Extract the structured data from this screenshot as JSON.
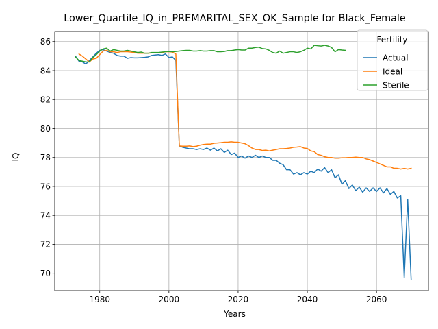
{
  "chart_data": {
    "type": "line",
    "title": "Lower_Quartile_IQ_in_PREMARITAL_SEX_OK_Sample for Black_Female",
    "xlabel": "Years",
    "ylabel": "IQ",
    "xlim": [
      1967,
      2075
    ],
    "ylim": [
      68.8,
      86.7
    ],
    "xticks": [
      1980,
      2000,
      2020,
      2040,
      2060
    ],
    "yticks": [
      70,
      72,
      74,
      76,
      78,
      80,
      82,
      84,
      86
    ],
    "grid": true,
    "legend": {
      "title": "Fertility",
      "placement": "upper right"
    },
    "series": [
      {
        "name": "Actual",
        "color": "#1f77b4",
        "x": [
          1973,
          1974,
          1975,
          1976,
          1977,
          1978,
          1979,
          1980,
          1981,
          1982,
          1983,
          1984,
          1985,
          1986,
          1987,
          1988,
          1989,
          1990,
          1991,
          1992,
          1993,
          1994,
          1995,
          1996,
          1997,
          1998,
          1999,
          2000,
          2001,
          2002,
          2003,
          2004,
          2005,
          2006,
          2007,
          2008,
          2009,
          2010,
          2011,
          2012,
          2013,
          2014,
          2015,
          2016,
          2017,
          2018,
          2019,
          2020,
          2021,
          2022,
          2023,
          2024,
          2025,
          2026,
          2027,
          2028,
          2029,
          2030,
          2031,
          2032,
          2033,
          2034,
          2035,
          2036,
          2037,
          2038,
          2039,
          2040,
          2041,
          2042,
          2043,
          2044,
          2045,
          2046,
          2047,
          2048,
          2049,
          2050,
          2051,
          2052,
          2053,
          2054,
          2055,
          2056,
          2057,
          2058,
          2059,
          2060,
          2061,
          2062,
          2063,
          2064,
          2065,
          2066,
          2067,
          2068,
          2069,
          2070
        ],
        "y": [
          85.0,
          84.65,
          84.6,
          84.45,
          84.7,
          84.95,
          85.2,
          85.4,
          85.45,
          85.35,
          85.25,
          85.2,
          85.05,
          85.0,
          85.0,
          84.85,
          84.9,
          84.88,
          84.88,
          84.9,
          84.92,
          84.95,
          85.05,
          85.08,
          85.1,
          85.05,
          85.15,
          84.9,
          84.95,
          84.7,
          78.8,
          78.7,
          78.65,
          78.6,
          78.6,
          78.55,
          78.6,
          78.55,
          78.65,
          78.5,
          78.65,
          78.45,
          78.6,
          78.35,
          78.5,
          78.2,
          78.3,
          78.0,
          78.1,
          77.95,
          78.1,
          78.0,
          78.15,
          78.0,
          78.1,
          78.0,
          78.0,
          77.8,
          77.8,
          77.6,
          77.5,
          77.15,
          77.15,
          76.85,
          76.95,
          76.8,
          76.95,
          76.85,
          77.05,
          76.95,
          77.2,
          77.05,
          77.3,
          76.95,
          77.15,
          76.6,
          76.8,
          76.15,
          76.4,
          75.85,
          76.1,
          75.7,
          75.95,
          75.6,
          75.9,
          75.65,
          75.9,
          75.65,
          75.9,
          75.55,
          75.85,
          75.45,
          75.65,
          75.2,
          75.35,
          69.7,
          75.1,
          69.55
        ]
      },
      {
        "name": "Ideal",
        "color": "#ff7f0e",
        "x": [
          1974,
          1975,
          1976,
          1977,
          1978,
          1979,
          1980,
          1981,
          1982,
          1983,
          1984,
          1985,
          1986,
          1987,
          1988,
          1989,
          1990,
          1991,
          1992,
          1993,
          1994,
          1995,
          1996,
          1997,
          1998,
          1999,
          2000,
          2001,
          2002,
          2003,
          2004,
          2005,
          2006,
          2007,
          2008,
          2009,
          2010,
          2011,
          2012,
          2013,
          2014,
          2015,
          2016,
          2017,
          2018,
          2019,
          2020,
          2021,
          2022,
          2023,
          2024,
          2025,
          2026,
          2027,
          2028,
          2029,
          2030,
          2031,
          2032,
          2033,
          2034,
          2035,
          2036,
          2037,
          2038,
          2039,
          2040,
          2041,
          2042,
          2043,
          2044,
          2045,
          2046,
          2047,
          2048,
          2049,
          2050,
          2051,
          2052,
          2053,
          2054,
          2055,
          2056,
          2057,
          2058,
          2059,
          2060,
          2061,
          2062,
          2063,
          2064,
          2065,
          2066,
          2067,
          2068,
          2069,
          2070
        ],
        "y": [
          85.15,
          85.0,
          84.8,
          84.6,
          84.8,
          84.85,
          85.1,
          85.35,
          85.4,
          85.3,
          85.3,
          85.25,
          85.3,
          85.3,
          85.3,
          85.28,
          85.25,
          85.2,
          85.2,
          85.2,
          85.2,
          85.22,
          85.22,
          85.22,
          85.25,
          85.3,
          85.3,
          85.28,
          85.15,
          78.8,
          78.78,
          78.78,
          78.8,
          78.75,
          78.78,
          78.85,
          78.9,
          78.92,
          78.92,
          78.98,
          79.0,
          79.02,
          79.05,
          79.05,
          79.08,
          79.05,
          79.05,
          79.0,
          78.95,
          78.82,
          78.65,
          78.55,
          78.55,
          78.48,
          78.5,
          78.45,
          78.5,
          78.55,
          78.6,
          78.6,
          78.62,
          78.65,
          78.7,
          78.72,
          78.75,
          78.65,
          78.62,
          78.45,
          78.4,
          78.2,
          78.15,
          78.05,
          78.0,
          78.0,
          77.95,
          77.95,
          77.98,
          77.98,
          78.0,
          78.0,
          78.02,
          78.0,
          78.0,
          77.9,
          77.85,
          77.75,
          77.65,
          77.55,
          77.45,
          77.35,
          77.35,
          77.25,
          77.25,
          77.2,
          77.25,
          77.2,
          77.25
        ]
      },
      {
        "name": "Sterile",
        "color": "#2ca02c",
        "x": [
          1973,
          1974,
          1975,
          1976,
          1977,
          1978,
          1979,
          1980,
          1981,
          1982,
          1983,
          1984,
          1985,
          1986,
          1987,
          1988,
          1989,
          1990,
          1991,
          1992,
          1993,
          1994,
          1995,
          1996,
          1997,
          1998,
          1999,
          2000,
          2001,
          2002,
          2003,
          2004,
          2005,
          2006,
          2007,
          2008,
          2009,
          2010,
          2011,
          2012,
          2013,
          2014,
          2015,
          2016,
          2017,
          2018,
          2019,
          2020,
          2021,
          2022,
          2023,
          2024,
          2025,
          2026,
          2027,
          2028,
          2029,
          2030,
          2031,
          2032,
          2033,
          2034,
          2035,
          2036,
          2037,
          2038,
          2039,
          2040,
          2041,
          2042,
          2043,
          2044,
          2045,
          2046,
          2047,
          2048,
          2049,
          2050,
          2051
        ],
        "y": [
          84.95,
          84.7,
          84.65,
          84.6,
          84.6,
          84.9,
          85.1,
          85.35,
          85.5,
          85.55,
          85.35,
          85.45,
          85.4,
          85.35,
          85.35,
          85.4,
          85.35,
          85.3,
          85.25,
          85.28,
          85.2,
          85.2,
          85.25,
          85.25,
          85.25,
          85.28,
          85.3,
          85.32,
          85.3,
          85.32,
          85.35,
          85.38,
          85.4,
          85.4,
          85.35,
          85.35,
          85.38,
          85.35,
          85.35,
          85.38,
          85.38,
          85.3,
          85.3,
          85.32,
          85.38,
          85.38,
          85.42,
          85.45,
          85.42,
          85.42,
          85.55,
          85.55,
          85.6,
          85.62,
          85.52,
          85.5,
          85.4,
          85.25,
          85.2,
          85.35,
          85.2,
          85.25,
          85.3,
          85.3,
          85.25,
          85.3,
          85.4,
          85.55,
          85.5,
          85.75,
          85.72,
          85.7,
          85.75,
          85.7,
          85.6,
          85.3,
          85.45,
          85.42,
          85.4
        ]
      }
    ]
  }
}
